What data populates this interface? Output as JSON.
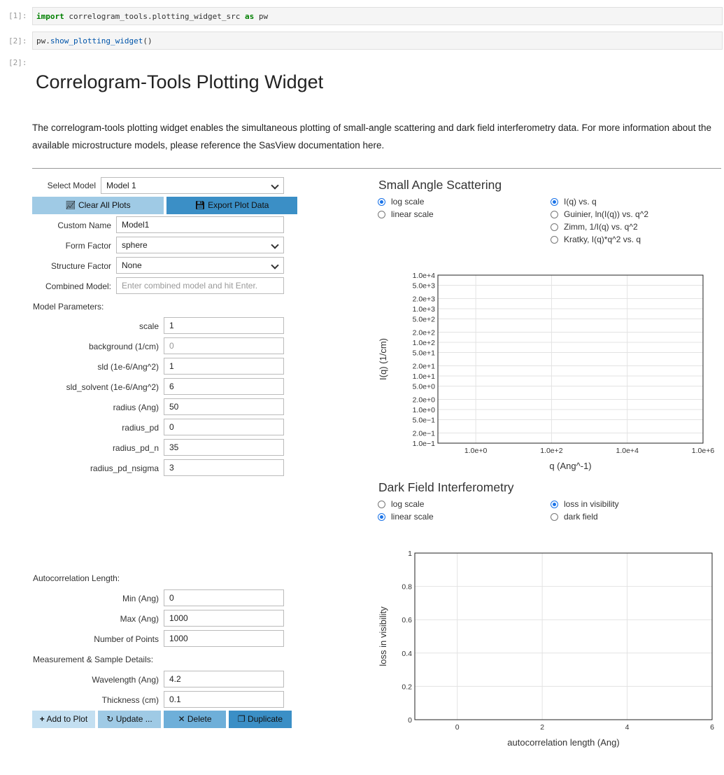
{
  "cells": {
    "in1_prompt": "[1]:",
    "in1_code": {
      "kw_import": "import",
      "module": " correlogram_tools.plotting_widget_src ",
      "kw_as": "as",
      "alias": " pw"
    },
    "in2_prompt": "[2]:",
    "in2_code": {
      "obj": "pw.",
      "func": "show_plotting_widget",
      "parens": "()"
    },
    "out2_prompt": "[2]:"
  },
  "widget": {
    "title": "Correlogram-Tools Plotting Widget",
    "description": "The correlogram-tools plotting widget enables the simultaneous plotting of small-angle scattering and dark field interferometry data. For more information about the available microstructure models, please reference the SasView documentation here.",
    "select_model_label": "Select Model",
    "select_model_value": "Model 1",
    "clear_button": "Clear All Plots",
    "export_button": "Export Plot Data",
    "custom_name_label": "Custom Name",
    "custom_name_value": "Model1",
    "form_factor_label": "Form Factor",
    "form_factor_value": "sphere",
    "structure_factor_label": "Structure Factor",
    "structure_factor_value": "None",
    "combined_model_label": "Combined Model:",
    "combined_model_placeholder": "Enter combined model and hit Enter.",
    "model_params_heading": "Model Parameters:",
    "params": [
      {
        "label": "scale",
        "value": "1"
      },
      {
        "label": "background (1/cm)",
        "value": "0"
      },
      {
        "label": "sld (1e-6/Ang^2)",
        "value": "1"
      },
      {
        "label": "sld_solvent (1e-6/Ang^2)",
        "value": "6"
      },
      {
        "label": "radius (Ang)",
        "value": "50"
      },
      {
        "label": "radius_pd",
        "value": "0"
      },
      {
        "label": "radius_pd_n",
        "value": "35"
      },
      {
        "label": "radius_pd_nsigma",
        "value": "3"
      }
    ],
    "autocorr_heading": "Autocorrelation Length:",
    "min_label": "Min (Ang)",
    "min_value": "0",
    "max_label": "Max (Ang)",
    "max_value": "1000",
    "npoints_label": "Number of Points",
    "npoints_value": "1000",
    "measurement_heading": "Measurement & Sample Details:",
    "wavelength_label": "Wavelength (Ang)",
    "wavelength_value": "4.2",
    "thickness_label": "Thickness (cm)",
    "thickness_value": "0.1",
    "add_button": "Add to Plot",
    "update_button": "Update ...",
    "delete_button": "Delete",
    "duplicate_button": "Duplicate"
  },
  "sas": {
    "heading": "Small Angle Scattering",
    "scale_options": [
      "log scale",
      "linear scale"
    ],
    "scale_selected": 0,
    "plot_options": [
      "I(q) vs. q",
      "Guinier, ln(I(q)) vs. q^2",
      "Zimm, 1/I(q) vs. q^2",
      "Kratky, I(q)*q^2 vs. q"
    ],
    "plot_selected": 0
  },
  "dfi": {
    "heading": "Dark Field Interferometry",
    "scale_options": [
      "log scale",
      "linear scale"
    ],
    "scale_selected": 1,
    "plot_options": [
      "loss in visibility",
      "dark field"
    ],
    "plot_selected": 0
  },
  "chart_data": [
    {
      "type": "line",
      "series": [],
      "xlabel": "q (Ang^-1)",
      "ylabel": "I(q) (1/cm)",
      "x_log": true,
      "y_log": true,
      "xlim_decades": [
        -1,
        6
      ],
      "ylim_decades": [
        -1,
        4
      ],
      "x_ticks": [
        "1.0e+0",
        "1.0e+2",
        "1.0e+4",
        "1.0e+6"
      ],
      "y_ticks": [
        "1.0e+4",
        "5.0e+3",
        "2.0e+3",
        "1.0e+3",
        "5.0e+2",
        "2.0e+2",
        "1.0e+2",
        "5.0e+1",
        "2.0e+1",
        "1.0e+1",
        "5.0e+0",
        "2.0e+0",
        "1.0e+0",
        "5.0e−1",
        "2.0e−1",
        "1.0e−1"
      ],
      "grid": true
    },
    {
      "type": "line",
      "series": [],
      "xlabel": "autocorrelation length (Ang)",
      "ylabel": "loss in visibility",
      "xlim": [
        -1,
        6
      ],
      "ylim": [
        0,
        1
      ],
      "x_ticks": [
        "0",
        "2",
        "4",
        "6"
      ],
      "y_ticks": [
        "0",
        "0.2",
        "0.4",
        "0.6",
        "0.8",
        "1"
      ],
      "grid": true
    }
  ]
}
